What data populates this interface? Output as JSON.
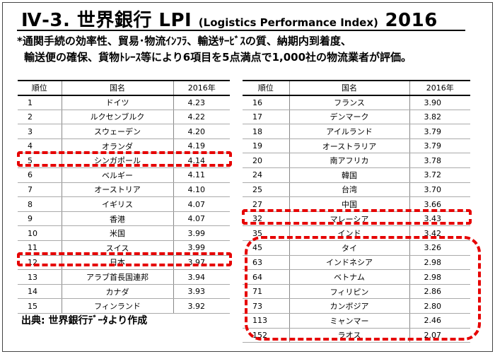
{
  "title": {
    "main": "Ⅳ-3. 世界銀行 LPI",
    "sub": "(Logistics Performance Index)",
    "year": "2016"
  },
  "description": {
    "line1": "*通関手続の効率性、貿易･物流ｲﾝﾌﾗ、輸送ｻｰﾋﾞｽの質、納期内到着度、",
    "line2": "輸送便の確保、貨物ﾄﾚｰｽ等により6項目を5点満点で1,000社の物流業者が評価。"
  },
  "table_left": {
    "headers": [
      "順位",
      "国名",
      "2016年"
    ],
    "rows": [
      [
        "1",
        "ドイツ",
        "4.23"
      ],
      [
        "2",
        "ルクセンブルク",
        "4.22"
      ],
      [
        "3",
        "スウェーデン",
        "4.20"
      ],
      [
        "4",
        "オランダ",
        "4.19"
      ],
      [
        "5",
        "シンガポール",
        "4.14"
      ],
      [
        "6",
        "ベルギー",
        "4.11"
      ],
      [
        "7",
        "オーストリア",
        "4.10"
      ],
      [
        "8",
        "イギリス",
        "4.07"
      ],
      [
        "9",
        "香港",
        "4.07"
      ],
      [
        "10",
        "米国",
        "3.99"
      ],
      [
        "11",
        "スイス",
        "3.99"
      ],
      [
        "12",
        "日本",
        "3.97"
      ],
      [
        "13",
        "アラブ首長国連邦",
        "3.94"
      ],
      [
        "14",
        "カナダ",
        "3.93"
      ],
      [
        "15",
        "フィンランド",
        "3.92"
      ]
    ]
  },
  "table_right": {
    "headers": [
      "順位",
      "国名",
      "2016年"
    ],
    "rows": [
      [
        "16",
        "フランス",
        "3.90"
      ],
      [
        "17",
        "デンマーク",
        "3.82"
      ],
      [
        "18",
        "アイルランド",
        "3.79"
      ],
      [
        "19",
        "オーストラリア",
        "3.79"
      ],
      [
        "20",
        "南アフリカ",
        "3.78"
      ],
      [
        "24",
        "韓国",
        "3.72"
      ],
      [
        "25",
        "台湾",
        "3.70"
      ],
      [
        "27",
        "中国",
        "3.66"
      ],
      [
        "32",
        "マレーシア",
        "3.43"
      ],
      [
        "35",
        "インド",
        "3.42"
      ],
      [
        "45",
        "タイ",
        "3.26"
      ],
      [
        "63",
        "インドネシア",
        "2.98"
      ],
      [
        "64",
        "ベトナム",
        "2.98"
      ],
      [
        "71",
        "フィリピン",
        "2.86"
      ],
      [
        "73",
        "カンボジア",
        "2.80"
      ],
      [
        "113",
        "ミャンマー",
        "2.46"
      ],
      [
        "152",
        "ラオス",
        "2.07"
      ]
    ]
  },
  "source": "出典:  世界銀行ﾃﾞｰﾀより作成",
  "colors": {
    "highlight": "#e60000",
    "text": "#000000",
    "background": "#ffffff"
  }
}
